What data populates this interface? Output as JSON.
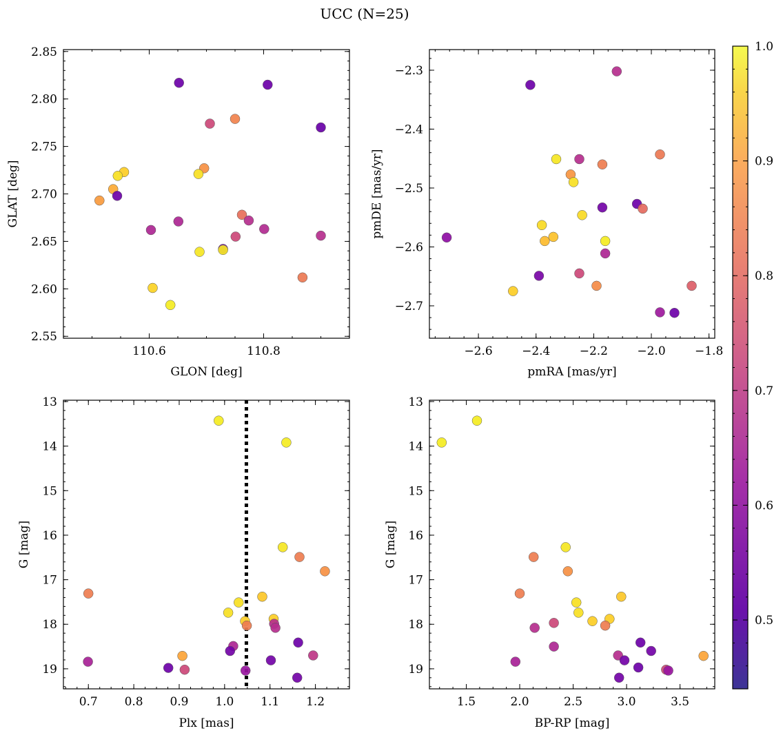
{
  "figure": {
    "title": "UCC (N=25)"
  },
  "colorbar": {
    "vmin": 0.44,
    "vmax": 1.0,
    "colormap": "plasma",
    "ticks": [
      0.5,
      0.6,
      0.7,
      0.8,
      0.9,
      1.0
    ],
    "tick_labels": [
      "0.5",
      "0.6",
      "0.7",
      "0.8",
      "0.9",
      "1.0"
    ]
  },
  "chart_data": [
    {
      "type": "scatter",
      "id": "glon_glat",
      "title": "",
      "xlabel": "GLON [deg]",
      "ylabel": "GLAT [deg]",
      "xlim": [
        110.45,
        110.95
      ],
      "ylim": [
        2.548,
        2.852
      ],
      "xticks": [
        110.6,
        110.8
      ],
      "xtick_labels": [
        "110.6",
        "110.8"
      ],
      "yticks": [
        2.55,
        2.6,
        2.65,
        2.7,
        2.75,
        2.8,
        2.85
      ],
      "ytick_labels": [
        "2.55",
        "2.60",
        "2.65",
        "2.70",
        "2.75",
        "2.80",
        "2.85"
      ],
      "points": [
        {
          "x": 110.652,
          "y": 2.817,
          "c": 0.46
        },
        {
          "x": 110.807,
          "y": 2.815,
          "c": 0.46
        },
        {
          "x": 110.706,
          "y": 2.774,
          "c": 0.66
        },
        {
          "x": 110.75,
          "y": 2.779,
          "c": 0.79
        },
        {
          "x": 110.9,
          "y": 2.77,
          "c": 0.45
        },
        {
          "x": 110.556,
          "y": 2.723,
          "c": 0.93
        },
        {
          "x": 110.545,
          "y": 2.719,
          "c": 0.96
        },
        {
          "x": 110.537,
          "y": 2.705,
          "c": 0.87
        },
        {
          "x": 110.544,
          "y": 2.698,
          "c": 0.46
        },
        {
          "x": 110.513,
          "y": 2.693,
          "c": 0.84
        },
        {
          "x": 110.696,
          "y": 2.727,
          "c": 0.82
        },
        {
          "x": 110.686,
          "y": 2.721,
          "c": 0.96
        },
        {
          "x": 110.603,
          "y": 2.662,
          "c": 0.58
        },
        {
          "x": 110.651,
          "y": 2.671,
          "c": 0.58
        },
        {
          "x": 110.762,
          "y": 2.678,
          "c": 0.75
        },
        {
          "x": 110.774,
          "y": 2.672,
          "c": 0.6
        },
        {
          "x": 110.751,
          "y": 2.655,
          "c": 0.66
        },
        {
          "x": 110.801,
          "y": 2.663,
          "c": 0.59
        },
        {
          "x": 110.9,
          "y": 2.656,
          "c": 0.6
        },
        {
          "x": 110.729,
          "y": 2.642,
          "c": 0.48
        },
        {
          "x": 110.729,
          "y": 2.641,
          "c": 0.97
        },
        {
          "x": 110.688,
          "y": 2.639,
          "c": 0.97
        },
        {
          "x": 110.868,
          "y": 2.612,
          "c": 0.77
        },
        {
          "x": 110.606,
          "y": 2.601,
          "c": 0.94
        },
        {
          "x": 110.637,
          "y": 2.583,
          "c": 0.98
        }
      ]
    },
    {
      "type": "scatter",
      "id": "pmra_pmde",
      "title": "",
      "xlabel": "pmRA [mas/yr]",
      "ylabel": "pmDE [mas/yr]",
      "xlim": [
        -2.77,
        -1.78
      ],
      "ylim": [
        -2.755,
        -2.265
      ],
      "xticks": [
        -2.6,
        -2.4,
        -2.2,
        -2.0,
        -1.8
      ],
      "xtick_labels": [
        "−2.6",
        "−2.4",
        "−2.2",
        "−2.0",
        "−1.8"
      ],
      "yticks": [
        -2.7,
        -2.6,
        -2.5,
        -2.4,
        -2.3
      ],
      "ytick_labels": [
        "−2.7",
        "−2.6",
        "−2.5",
        "−2.4",
        "−2.3"
      ],
      "points": [
        {
          "x": -2.12,
          "y": -2.302,
          "c": 0.6
        },
        {
          "x": -2.42,
          "y": -2.325,
          "c": 0.46
        },
        {
          "x": -2.33,
          "y": -2.451,
          "c": 0.97
        },
        {
          "x": -2.25,
          "y": -2.451,
          "c": 0.6
        },
        {
          "x": -2.17,
          "y": -2.46,
          "c": 0.78
        },
        {
          "x": -1.97,
          "y": -2.443,
          "c": 0.77
        },
        {
          "x": -2.28,
          "y": -2.477,
          "c": 0.83
        },
        {
          "x": -2.27,
          "y": -2.49,
          "c": 0.96
        },
        {
          "x": -2.17,
          "y": -2.533,
          "c": 0.47
        },
        {
          "x": -2.05,
          "y": -2.527,
          "c": 0.46
        },
        {
          "x": -2.03,
          "y": -2.535,
          "c": 0.74
        },
        {
          "x": -2.24,
          "y": -2.546,
          "c": 0.95
        },
        {
          "x": -2.38,
          "y": -2.563,
          "c": 0.95
        },
        {
          "x": -2.34,
          "y": -2.583,
          "c": 0.91
        },
        {
          "x": -2.37,
          "y": -2.59,
          "c": 0.9
        },
        {
          "x": -2.16,
          "y": -2.59,
          "c": 0.98
        },
        {
          "x": -2.71,
          "y": -2.584,
          "c": 0.52
        },
        {
          "x": -2.16,
          "y": -2.611,
          "c": 0.58
        },
        {
          "x": -2.39,
          "y": -2.649,
          "c": 0.48
        },
        {
          "x": -2.25,
          "y": -2.645,
          "c": 0.66
        },
        {
          "x": -2.19,
          "y": -2.666,
          "c": 0.81
        },
        {
          "x": -2.48,
          "y": -2.675,
          "c": 0.93
        },
        {
          "x": -1.86,
          "y": -2.666,
          "c": 0.71
        },
        {
          "x": -1.97,
          "y": -2.711,
          "c": 0.55
        },
        {
          "x": -1.92,
          "y": -2.712,
          "c": 0.46
        }
      ]
    },
    {
      "type": "scatter",
      "id": "plx_g",
      "title": "",
      "xlabel": "Plx [mas]",
      "ylabel": "G [mag]",
      "xlim": [
        0.645,
        1.275
      ],
      "ylim": [
        19.45,
        12.97
      ],
      "yinverted": true,
      "xticks": [
        0.7,
        0.8,
        0.9,
        1.0,
        1.1,
        1.2
      ],
      "xtick_labels": [
        "0.7",
        "0.8",
        "0.9",
        "1.0",
        "1.1",
        "1.2"
      ],
      "yticks": [
        13,
        14,
        15,
        16,
        17,
        18,
        19
      ],
      "ytick_labels": [
        "13",
        "14",
        "15",
        "16",
        "17",
        "18",
        "19"
      ],
      "vline": {
        "x": 1.048,
        "style": "dotted"
      },
      "points": [
        {
          "x": 0.987,
          "y": 13.43,
          "c": 0.98
        },
        {
          "x": 1.136,
          "y": 13.92,
          "c": 0.98
        },
        {
          "x": 1.128,
          "y": 16.27,
          "c": 0.97
        },
        {
          "x": 1.165,
          "y": 16.49,
          "c": 0.78
        },
        {
          "x": 1.221,
          "y": 16.81,
          "c": 0.82
        },
        {
          "x": 0.7,
          "y": 17.31,
          "c": 0.78
        },
        {
          "x": 1.083,
          "y": 17.38,
          "c": 0.92
        },
        {
          "x": 1.031,
          "y": 17.51,
          "c": 0.96
        },
        {
          "x": 1.008,
          "y": 17.74,
          "c": 0.96
        },
        {
          "x": 1.108,
          "y": 17.88,
          "c": 0.93
        },
        {
          "x": 1.045,
          "y": 17.93,
          "c": 0.93
        },
        {
          "x": 1.109,
          "y": 17.99,
          "c": 0.6
        },
        {
          "x": 1.049,
          "y": 18.03,
          "c": 0.78
        },
        {
          "x": 1.112,
          "y": 18.08,
          "c": 0.6
        },
        {
          "x": 1.162,
          "y": 18.41,
          "c": 0.46
        },
        {
          "x": 1.019,
          "y": 18.49,
          "c": 0.58
        },
        {
          "x": 1.012,
          "y": 18.6,
          "c": 0.47
        },
        {
          "x": 1.195,
          "y": 18.7,
          "c": 0.62
        },
        {
          "x": 0.907,
          "y": 18.71,
          "c": 0.86
        },
        {
          "x": 1.102,
          "y": 18.81,
          "c": 0.47
        },
        {
          "x": 0.699,
          "y": 18.84,
          "c": 0.57
        },
        {
          "x": 0.876,
          "y": 18.98,
          "c": 0.46
        },
        {
          "x": 0.912,
          "y": 19.02,
          "c": 0.66
        },
        {
          "x": 1.046,
          "y": 19.04,
          "c": 0.54
        },
        {
          "x": 1.16,
          "y": 19.2,
          "c": 0.47
        }
      ]
    },
    {
      "type": "scatter",
      "id": "bprp_g",
      "title": "",
      "xlabel": "BP-RP [mag]",
      "ylabel": "G [mag]",
      "xlim": [
        1.155,
        3.825
      ],
      "ylim": [
        19.45,
        12.97
      ],
      "yinverted": true,
      "xticks": [
        1.5,
        2.0,
        2.5,
        3.0,
        3.5
      ],
      "xtick_labels": [
        "1.5",
        "2.0",
        "2.5",
        "3.0",
        "3.5"
      ],
      "yticks": [
        13,
        14,
        15,
        16,
        17,
        18,
        19
      ],
      "ytick_labels": [
        "13",
        "14",
        "15",
        "16",
        "17",
        "18",
        "19"
      ],
      "points": [
        {
          "x": 1.6,
          "y": 13.43,
          "c": 0.98
        },
        {
          "x": 1.27,
          "y": 13.92,
          "c": 0.98
        },
        {
          "x": 2.43,
          "y": 16.27,
          "c": 0.97
        },
        {
          "x": 2.13,
          "y": 16.49,
          "c": 0.78
        },
        {
          "x": 2.45,
          "y": 16.81,
          "c": 0.82
        },
        {
          "x": 2.0,
          "y": 17.31,
          "c": 0.78
        },
        {
          "x": 2.95,
          "y": 17.38,
          "c": 0.92
        },
        {
          "x": 2.53,
          "y": 17.51,
          "c": 0.96
        },
        {
          "x": 2.55,
          "y": 17.74,
          "c": 0.96
        },
        {
          "x": 2.84,
          "y": 17.88,
          "c": 0.93
        },
        {
          "x": 2.68,
          "y": 17.93,
          "c": 0.93
        },
        {
          "x": 2.32,
          "y": 17.97,
          "c": 0.66
        },
        {
          "x": 2.8,
          "y": 18.03,
          "c": 0.78
        },
        {
          "x": 2.14,
          "y": 18.08,
          "c": 0.6
        },
        {
          "x": 3.13,
          "y": 18.41,
          "c": 0.46
        },
        {
          "x": 2.32,
          "y": 18.5,
          "c": 0.58
        },
        {
          "x": 3.23,
          "y": 18.6,
          "c": 0.47
        },
        {
          "x": 2.92,
          "y": 18.7,
          "c": 0.6
        },
        {
          "x": 3.72,
          "y": 18.71,
          "c": 0.86
        },
        {
          "x": 2.98,
          "y": 18.81,
          "c": 0.47
        },
        {
          "x": 1.96,
          "y": 18.84,
          "c": 0.57
        },
        {
          "x": 3.11,
          "y": 18.97,
          "c": 0.46
        },
        {
          "x": 3.37,
          "y": 19.02,
          "c": 0.66
        },
        {
          "x": 3.39,
          "y": 19.04,
          "c": 0.54
        },
        {
          "x": 2.93,
          "y": 19.2,
          "c": 0.47
        }
      ]
    }
  ]
}
